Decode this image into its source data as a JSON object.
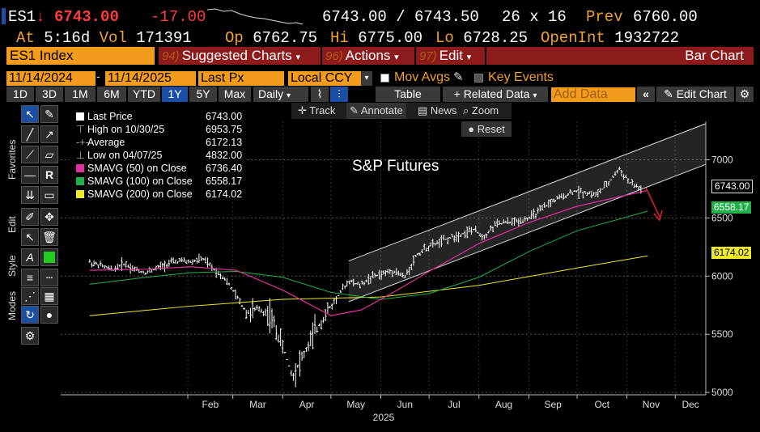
{
  "header": {
    "ticker": "ES1",
    "arrow": "↓",
    "last": "6743.00",
    "change": "-17.00",
    "bid_ask": "6743.00 / 6743.50",
    "size": "26 x 16",
    "prev_label": "Prev",
    "prev": "6760.00",
    "time_label": "At",
    "time": "5:16d",
    "vol_label": "Vol",
    "vol": "171391",
    "op_label": "Op",
    "op": "6762.75",
    "hi_label": "Hi",
    "hi": "6775.00",
    "lo_label": "Lo",
    "lo": "6728.25",
    "oi_label": "OpenInt",
    "oi": "1932722"
  },
  "menubar": {
    "security": "ES1 Index",
    "suggested_num": "94)",
    "suggested": "Suggested Charts",
    "actions_num": "96)",
    "actions": "Actions",
    "edit_num": "97)",
    "edit": "Edit",
    "chart_type": "Bar Chart"
  },
  "controls": {
    "start_date": "11/14/2024",
    "end_date": "11/14/2025",
    "field": "Last Px",
    "currency": "Local CCY",
    "mov_avgs": "Mov Avgs",
    "key_events": "Key Events"
  },
  "periods": [
    "1D",
    "3D",
    "1M",
    "6M",
    "YTD",
    "1Y",
    "5Y",
    "Max"
  ],
  "selected_period": "1Y",
  "toolbar": {
    "frequency": "Daily",
    "table": "Table",
    "related": "+ Related Data",
    "add_data_placeholder": "Add Data",
    "edit_chart": "Edit Chart",
    "track": "Track",
    "annotate": "Annotate",
    "news": "News",
    "zoom": "Zoom",
    "reset": "Reset"
  },
  "side_labels": {
    "favorites": "Favorites",
    "edit": "Edit",
    "style": "Style",
    "modes": "Modes"
  },
  "legend": [
    {
      "label": "Last Price",
      "value": "6743.00",
      "color": "#ffffff",
      "kind": "box"
    },
    {
      "label": "High on 10/30/25",
      "value": "6953.75",
      "color": "#aaaaaa",
      "kind": "high"
    },
    {
      "label": "Average",
      "value": "6172.13",
      "color": "#aaaaaa",
      "kind": "avg"
    },
    {
      "label": "Low on 04/07/25",
      "value": "4832.00",
      "color": "#aaaaaa",
      "kind": "low"
    },
    {
      "label": "SMAVG (50)  on Close",
      "value": "6736.40",
      "color": "#e0309a",
      "kind": "box"
    },
    {
      "label": "SMAVG (100)  on Close",
      "value": "6558.17",
      "color": "#22b04a",
      "kind": "box"
    },
    {
      "label": "SMAVG (200)  on Close",
      "value": "6174.02",
      "color": "#f0e82a",
      "kind": "box"
    }
  ],
  "chart_data": {
    "type": "bar",
    "title": "S&P Futures",
    "xlabel": "2025",
    "ylabel": "",
    "ylim": [
      4980,
      7330
    ],
    "x_ticks": [
      "Feb",
      "Mar",
      "Apr",
      "May",
      "Jun",
      "Jul",
      "Aug",
      "Sep",
      "Oct",
      "Nov",
      "Dec"
    ],
    "y_ticks": [
      5000,
      5500,
      6000,
      6500,
      7000
    ],
    "price_tags": [
      {
        "label": "6743.00",
        "value": 6743.0,
        "color": "#ffffff"
      },
      {
        "label": "6558.17",
        "value": 6558.17,
        "color": "#22b04a"
      },
      {
        "label": "6174.02",
        "value": 6174.02,
        "color": "#f0e82a"
      }
    ],
    "series": [
      {
        "name": "Last Price (weekly approx)",
        "x": [
          "2024-12-02",
          "2024-12-09",
          "2024-12-16",
          "2024-12-23",
          "2024-12-30",
          "2025-01-06",
          "2025-01-13",
          "2025-01-20",
          "2025-01-27",
          "2025-02-03",
          "2025-02-10",
          "2025-02-17",
          "2025-02-24",
          "2025-03-03",
          "2025-03-10",
          "2025-03-17",
          "2025-03-24",
          "2025-03-31",
          "2025-04-07",
          "2025-04-14",
          "2025-04-21",
          "2025-04-28",
          "2025-05-05",
          "2025-05-12",
          "2025-05-19",
          "2025-05-26",
          "2025-06-02",
          "2025-06-09",
          "2025-06-16",
          "2025-06-23",
          "2025-06-30",
          "2025-07-07",
          "2025-07-14",
          "2025-07-21",
          "2025-07-28",
          "2025-08-04",
          "2025-08-11",
          "2025-08-18",
          "2025-08-25",
          "2025-09-01",
          "2025-09-08",
          "2025-09-15",
          "2025-09-22",
          "2025-09-29",
          "2025-10-06",
          "2025-10-13",
          "2025-10-20",
          "2025-10-27",
          "2025-11-03",
          "2025-11-10"
        ],
        "values": [
          6120,
          6090,
          6050,
          6110,
          6060,
          6030,
          6070,
          6110,
          6130,
          6120,
          6150,
          6060,
          5980,
          5830,
          5680,
          5720,
          5670,
          5430,
          5150,
          5320,
          5520,
          5680,
          5820,
          5960,
          5920,
          5990,
          6020,
          6050,
          5990,
          6180,
          6250,
          6290,
          6330,
          6360,
          6400,
          6340,
          6440,
          6460,
          6470,
          6500,
          6560,
          6640,
          6680,
          6730,
          6720,
          6700,
          6790,
          6920,
          6800,
          6743
        ]
      },
      {
        "name": "SMAVG (50)",
        "x": [
          "2024-12-02",
          "2025-01-06",
          "2025-02-03",
          "2025-03-03",
          "2025-04-01",
          "2025-05-01",
          "2025-05-20",
          "2025-06-10",
          "2025-07-01",
          "2025-08-01",
          "2025-09-01",
          "2025-10-01",
          "2025-11-14"
        ],
        "values": [
          6050,
          6060,
          6080,
          6050,
          5880,
          5660,
          5710,
          5870,
          6040,
          6280,
          6460,
          6600,
          6736.4
        ]
      },
      {
        "name": "SMAVG (100)",
        "x": [
          "2024-12-02",
          "2025-01-06",
          "2025-02-03",
          "2025-03-03",
          "2025-04-01",
          "2025-05-01",
          "2025-06-01",
          "2025-07-01",
          "2025-08-01",
          "2025-09-01",
          "2025-10-01",
          "2025-11-14"
        ],
        "values": [
          5930,
          5990,
          6030,
          6040,
          5990,
          5860,
          5800,
          5850,
          5990,
          6210,
          6390,
          6558.17
        ]
      },
      {
        "name": "SMAVG (200)",
        "x": [
          "2024-12-02",
          "2025-02-01",
          "2025-04-01",
          "2025-06-01",
          "2025-08-01",
          "2025-10-01",
          "2025-11-14"
        ],
        "values": [
          5660,
          5740,
          5800,
          5820,
          5920,
          6070,
          6174.02
        ]
      }
    ],
    "channel": {
      "start": "2025-05-12",
      "end": "2025-12-20",
      "upper": [
        6130,
        7310
      ],
      "lower": [
        5780,
        6960
      ]
    }
  }
}
